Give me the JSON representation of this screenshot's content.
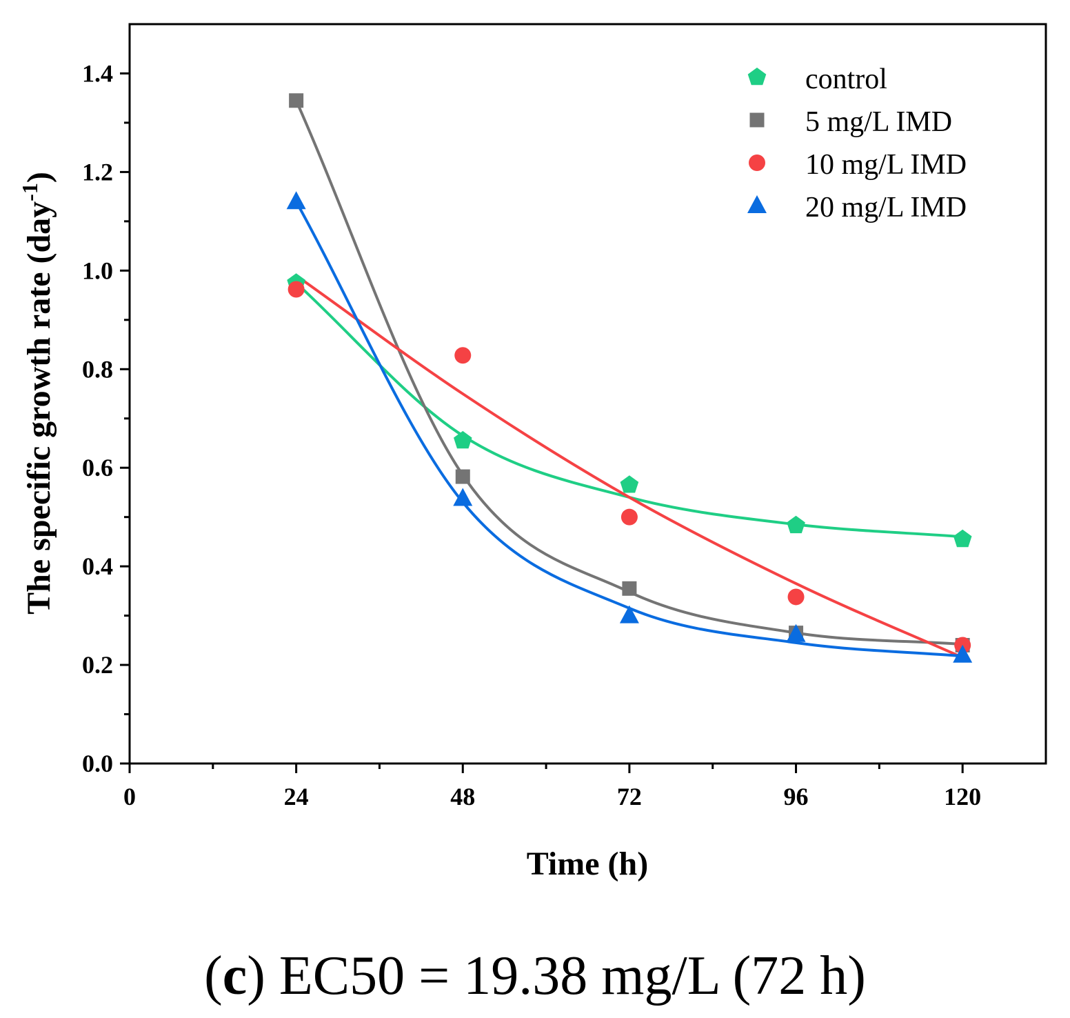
{
  "chart_data": {
    "type": "scatter",
    "xlabel": "Time (h)",
    "ylabel_main": "The specific growth rate (day",
    "ylabel_sup": "-1",
    "ylabel_end": ")",
    "xlim": [
      0,
      132
    ],
    "ylim": [
      0,
      1.5
    ],
    "xticks": [
      0,
      24,
      48,
      72,
      96,
      120
    ],
    "xtick_labels": [
      "0",
      "24",
      "48",
      "72",
      "96",
      "120"
    ],
    "xminor": [
      12,
      36,
      60,
      84,
      108
    ],
    "yticks": [
      0.0,
      0.2,
      0.4,
      0.6,
      0.8,
      1.0,
      1.2,
      1.4
    ],
    "ytick_labels": [
      "0.0",
      "0.2",
      "0.4",
      "0.6",
      "0.8",
      "1.0",
      "1.2",
      "1.4"
    ],
    "yminor": [
      0.1,
      0.3,
      0.5,
      0.7,
      0.9,
      1.1,
      1.3
    ],
    "x": [
      24,
      48,
      72,
      96,
      120
    ],
    "legend_position": "top-right",
    "series": [
      {
        "name": "control",
        "color": "#1fce85",
        "marker": "pentagon",
        "values": [
          0.975,
          0.655,
          0.565,
          0.483,
          0.455
        ],
        "fit": [
          0.975,
          0.665,
          0.54,
          0.485,
          0.46
        ]
      },
      {
        "name": "5 mg/L IMD",
        "color": "#747474",
        "marker": "square",
        "values": [
          1.345,
          0.582,
          0.355,
          0.265,
          0.24
        ],
        "fit": [
          1.345,
          0.585,
          0.348,
          0.265,
          0.242
        ]
      },
      {
        "name": "10 mg/L IMD",
        "color": "#f54244",
        "marker": "circle",
        "values": [
          0.962,
          0.828,
          0.5,
          0.338,
          0.24
        ],
        "fit": [
          0.99,
          0.75,
          0.54,
          0.365,
          0.215
        ]
      },
      {
        "name": "20 mg/L IMD",
        "color": "#0a6ce0",
        "marker": "triangle",
        "values": [
          1.14,
          0.538,
          0.3,
          0.262,
          0.22
        ],
        "fit": [
          1.14,
          0.53,
          0.315,
          0.245,
          0.218
        ]
      }
    ]
  },
  "caption": {
    "open": "(",
    "letter": "c",
    "rest": ") EC50 = 19.38 mg/L (72 h)"
  }
}
